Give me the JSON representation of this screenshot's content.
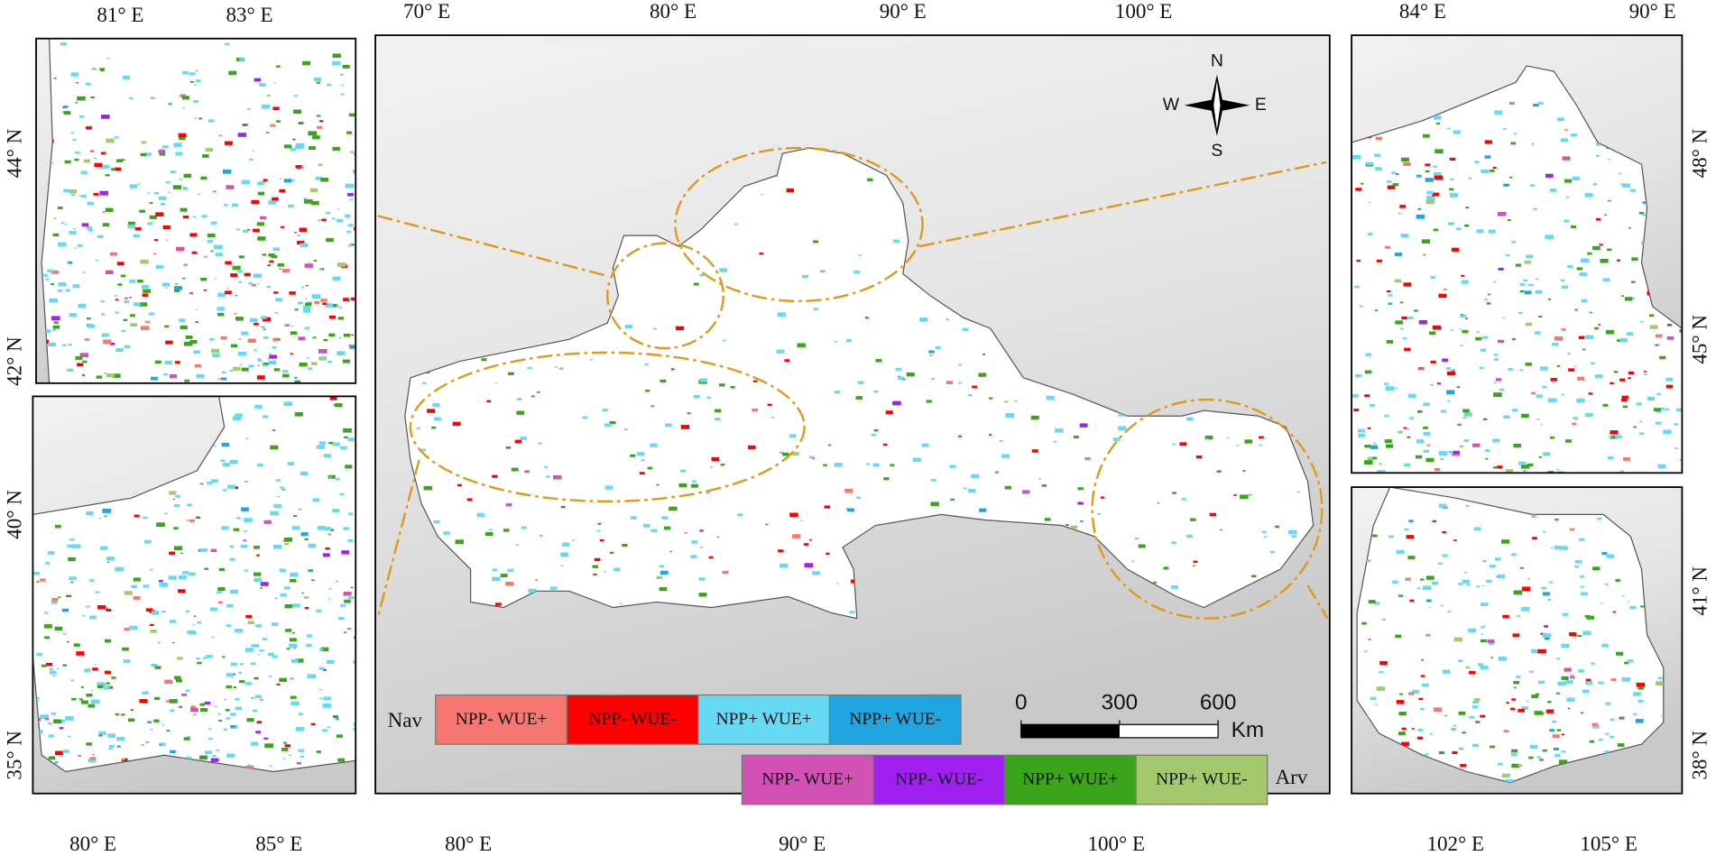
{
  "insets": {
    "top_left": {
      "top_ticks": [
        "81° E",
        "83° E"
      ],
      "left_ticks": [
        "44° N",
        "42° N"
      ]
    },
    "bottom_left": {
      "bottom_ticks": [
        "80° E",
        "85° E"
      ],
      "left_ticks": [
        "40° N",
        "35° N"
      ]
    },
    "center": {
      "top_ticks": [
        "70° E",
        "80° E",
        "90° E",
        "100° E"
      ],
      "bottom_ticks": [
        "80° E",
        "90° E",
        "100° E"
      ]
    },
    "top_right": {
      "top_ticks": [
        "84° E",
        "90° E"
      ],
      "right_ticks": [
        "48° N",
        "45° N"
      ]
    },
    "bottom_right": {
      "bottom_ticks": [
        "102° E",
        "105° E"
      ],
      "right_ticks": [
        "41° N",
        "38° N"
      ]
    }
  },
  "compass": {
    "north": "N",
    "south": "S",
    "west": "W",
    "east": "E"
  },
  "scale_bar": {
    "ticks": [
      0,
      300,
      600
    ],
    "unit": "Km"
  },
  "legend": {
    "nav_label": "Nav",
    "arv_label": "Arv",
    "nav_items": [
      {
        "label": "NPP- WUE+",
        "color": "#f7766f"
      },
      {
        "label": "NPP- WUE-",
        "color": "#ff0000"
      },
      {
        "label": "NPP+ WUE+",
        "color": "#66d9f5"
      },
      {
        "label": "NPP+ WUE-",
        "color": "#1fa5e0"
      }
    ],
    "arv_items": [
      {
        "label": "NPP- WUE+",
        "color": "#d350b4"
      },
      {
        "label": "NPP- WUE-",
        "color": "#a020f0"
      },
      {
        "label": "NPP+ WUE+",
        "color": "#3aa51a"
      },
      {
        "label": "NPP+ WUE-",
        "color": "#a3c96c"
      }
    ]
  }
}
